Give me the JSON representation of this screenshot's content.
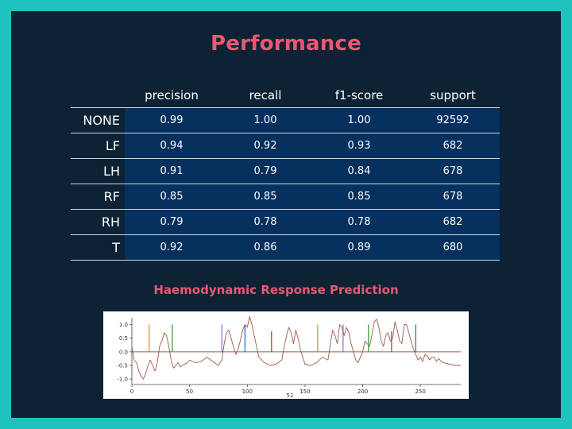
{
  "slide": {
    "title": "Performance",
    "subtitle": "Haemodynamic Response Prediction"
  },
  "table": {
    "columns": [
      "precision",
      "recall",
      "f1-score",
      "support"
    ],
    "rows": [
      {
        "label": "NONE",
        "values": [
          "0.99",
          "1.00",
          "1.00",
          "92592"
        ]
      },
      {
        "label": "LF",
        "values": [
          "0.94",
          "0.92",
          "0.93",
          "682"
        ]
      },
      {
        "label": "LH",
        "values": [
          "0.91",
          "0.79",
          "0.84",
          "678"
        ]
      },
      {
        "label": "RF",
        "values": [
          "0.85",
          "0.85",
          "0.85",
          "678"
        ]
      },
      {
        "label": "RH",
        "values": [
          "0.79",
          "0.78",
          "0.78",
          "682"
        ]
      },
      {
        "label": "T",
        "values": [
          "0.92",
          "0.86",
          "0.89",
          "680"
        ]
      }
    ]
  },
  "chart_data": {
    "type": "line",
    "xlabel": "51",
    "xlim": [
      0,
      285
    ],
    "ylim": [
      -1.2,
      1.25
    ],
    "xticks": [
      "0",
      "50",
      "100",
      "150",
      "200",
      "250"
    ],
    "yticks": [
      "1.0",
      "0.5",
      "0.0",
      "-0.5",
      "-1.0"
    ],
    "series": [
      {
        "color": "#9b5a4c",
        "kind": "signal",
        "x": [
          0,
          2,
          4,
          6,
          8,
          10,
          12,
          14,
          16,
          18,
          20,
          22,
          24,
          26,
          28,
          30,
          32,
          34,
          36,
          38,
          40,
          42,
          44,
          46,
          48,
          50,
          55,
          60,
          65,
          70,
          75,
          78,
          80,
          82,
          84,
          86,
          88,
          90,
          92,
          94,
          96,
          98,
          100,
          102,
          104,
          106,
          108,
          110,
          115,
          120,
          125,
          130,
          132,
          134,
          136,
          138,
          140,
          142,
          144,
          146,
          148,
          150,
          155,
          160,
          165,
          170,
          172,
          174,
          176,
          178,
          180,
          182,
          184,
          186,
          188,
          190,
          192,
          194,
          196,
          198,
          200,
          202,
          204,
          206,
          208,
          210,
          212,
          214,
          216,
          218,
          220,
          222,
          224,
          226,
          228,
          230,
          232,
          234,
          236,
          238,
          240,
          242,
          244,
          246,
          248,
          250,
          252,
          254,
          256,
          258,
          260,
          262,
          264,
          266,
          268,
          270,
          275,
          280,
          285
        ],
        "y": [
          0.2,
          -0.3,
          -0.4,
          -0.7,
          -0.9,
          -1.0,
          -0.8,
          -0.5,
          -0.3,
          -0.5,
          -0.7,
          -0.4,
          0.2,
          0.4,
          0.7,
          0.6,
          0.2,
          -0.3,
          -0.6,
          -0.5,
          -0.4,
          -0.55,
          -0.5,
          -0.45,
          -0.4,
          -0.3,
          -0.4,
          -0.35,
          -0.2,
          -0.35,
          -0.5,
          -0.3,
          0.3,
          0.7,
          0.8,
          0.5,
          0.2,
          -0.1,
          0.1,
          0.4,
          0.8,
          1.0,
          0.9,
          1.3,
          1.0,
          0.6,
          0.2,
          -0.2,
          -0.4,
          -0.5,
          -0.45,
          -0.3,
          0.2,
          0.6,
          0.9,
          0.7,
          0.3,
          0.8,
          0.5,
          0.1,
          -0.2,
          -0.45,
          -0.5,
          -0.4,
          -0.2,
          -0.3,
          0.3,
          0.8,
          0.6,
          0.3,
          1.0,
          0.9,
          0.6,
          0.9,
          0.7,
          0.3,
          0.0,
          -0.3,
          -0.4,
          -0.2,
          0.0,
          0.4,
          0.3,
          0.2,
          0.6,
          1.1,
          1.2,
          0.9,
          0.4,
          0.2,
          0.6,
          0.7,
          0.4,
          0.5,
          1.1,
          0.8,
          0.4,
          0.3,
          1.0,
          1.0,
          0.7,
          0.4,
          0.1,
          -0.1,
          -0.3,
          -0.2,
          -0.35,
          -0.1,
          -0.15,
          -0.3,
          -0.2,
          -0.2,
          -0.35,
          -0.25,
          -0.35,
          -0.4,
          -0.45,
          -0.5,
          -0.5
        ]
      }
    ],
    "baseline": {
      "y": 0.0,
      "color": "#9b5a4c",
      "x_start": 0,
      "x_end": 285
    },
    "event_markers": [
      {
        "x": 15,
        "y0": 0.0,
        "y1": 1.0,
        "color": "#f08c2a"
      },
      {
        "x": 35,
        "y0": 0.0,
        "y1": 1.0,
        "color": "#3aa03a"
      },
      {
        "x": 78,
        "y0": 0.0,
        "y1": 1.0,
        "color": "#9b6fd1"
      },
      {
        "x": 98,
        "y0": 0.0,
        "y1": 1.0,
        "color": "#2a78c0"
      },
      {
        "x": 121,
        "y0": 0.0,
        "y1": 0.75,
        "color": "#d23a3a"
      },
      {
        "x": 161,
        "y0": 0.0,
        "y1": 1.0,
        "color": "#f08c2a"
      },
      {
        "x": 183,
        "y0": 0.0,
        "y1": 1.0,
        "color": "#9b6fd1"
      },
      {
        "x": 205,
        "y0": 0.0,
        "y1": 1.0,
        "color": "#3aa03a"
      },
      {
        "x": 225,
        "y0": 0.0,
        "y1": 0.75,
        "color": "#d23a3a"
      },
      {
        "x": 246,
        "y0": 0.0,
        "y1": 1.0,
        "color": "#2a78c0"
      }
    ]
  }
}
